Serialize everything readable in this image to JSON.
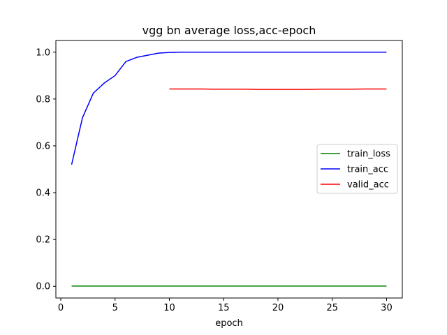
{
  "chart_data": {
    "type": "line",
    "title": "vgg bn average loss,acc-epoch",
    "xlabel": "epoch",
    "ylabel": "",
    "xlim": [
      -0.45,
      31.45
    ],
    "ylim": [
      -0.05,
      1.05
    ],
    "xticks": [
      0,
      5,
      10,
      15,
      20,
      25,
      30
    ],
    "yticks": [
      0.0,
      0.2,
      0.4,
      0.6,
      0.8,
      1.0
    ],
    "xtick_labels": [
      "0",
      "5",
      "10",
      "15",
      "20",
      "25",
      "30"
    ],
    "ytick_labels": [
      "0.0",
      "0.2",
      "0.4",
      "0.6",
      "0.8",
      "1.0"
    ],
    "grid": false,
    "legend": "center-right",
    "series": [
      {
        "name": "train_loss",
        "color": "#008000",
        "x": [
          1,
          2,
          3,
          4,
          5,
          6,
          7,
          8,
          9,
          10,
          11,
          12,
          13,
          14,
          15,
          16,
          17,
          18,
          19,
          20,
          21,
          22,
          23,
          24,
          25,
          26,
          27,
          28,
          29,
          30
        ],
        "y": [
          0.001,
          0.001,
          0.001,
          0.001,
          0.001,
          0.001,
          0.001,
          0.001,
          0.001,
          0.001,
          0.001,
          0.001,
          0.001,
          0.001,
          0.001,
          0.001,
          0.001,
          0.001,
          0.001,
          0.001,
          0.001,
          0.001,
          0.001,
          0.001,
          0.001,
          0.001,
          0.001,
          0.001,
          0.001,
          0.001
        ]
      },
      {
        "name": "train_acc",
        "color": "#0000ff",
        "x": [
          1,
          2,
          3,
          4,
          5,
          6,
          7,
          8,
          9,
          10,
          11,
          12,
          13,
          14,
          15,
          16,
          17,
          18,
          19,
          20,
          21,
          22,
          23,
          24,
          25,
          26,
          27,
          28,
          29,
          30
        ],
        "y": [
          0.52,
          0.72,
          0.825,
          0.868,
          0.9,
          0.96,
          0.978,
          0.987,
          0.996,
          0.999,
          1.0,
          1.0,
          1.0,
          1.0,
          1.0,
          1.0,
          1.0,
          1.0,
          1.0,
          1.0,
          1.0,
          1.0,
          1.0,
          1.0,
          1.0,
          1.0,
          1.0,
          1.0,
          1.0,
          1.0
        ]
      },
      {
        "name": "valid_acc",
        "color": "#ff0000",
        "x": [
          10,
          11,
          12,
          13,
          14,
          15,
          16,
          17,
          18,
          19,
          20,
          21,
          22,
          23,
          24,
          25,
          26,
          27,
          28,
          29,
          30
        ],
        "y": [
          0.843,
          0.843,
          0.843,
          0.843,
          0.842,
          0.842,
          0.842,
          0.842,
          0.841,
          0.841,
          0.841,
          0.841,
          0.841,
          0.841,
          0.842,
          0.842,
          0.842,
          0.842,
          0.843,
          0.843,
          0.843
        ]
      }
    ]
  }
}
